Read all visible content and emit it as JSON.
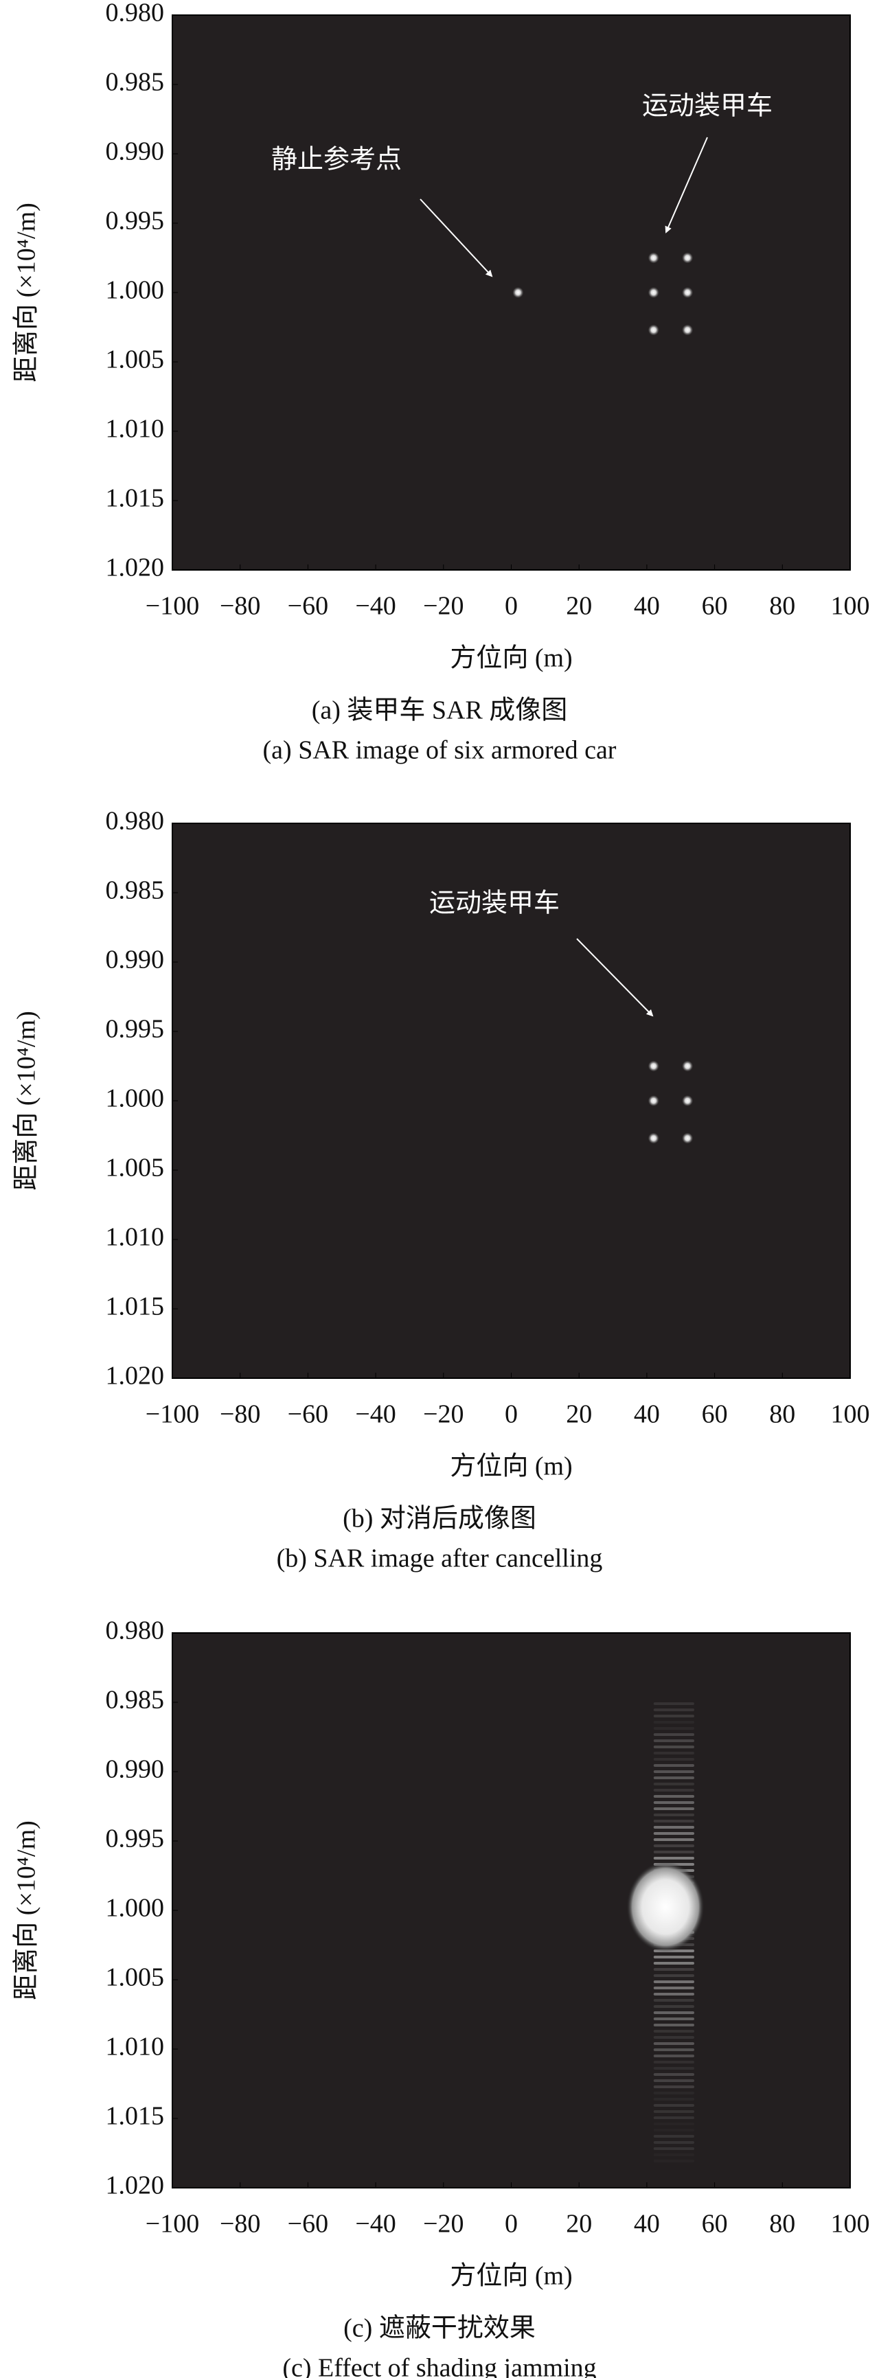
{
  "chart_data": [
    {
      "type": "scatter",
      "x": [
        2,
        42,
        52,
        42,
        52,
        42,
        52
      ],
      "values": [
        1.0,
        0.9975,
        0.9975,
        1.0,
        1.0,
        1.0027,
        1.0027
      ],
      "xlim": [
        -100,
        100
      ],
      "ylim": [
        0.98,
        1.02
      ],
      "xticks": [
        {
          "value": -100,
          "label": "−100"
        },
        {
          "value": -80,
          "label": "−80"
        },
        {
          "value": -60,
          "label": "−60"
        },
        {
          "value": -40,
          "label": "−40"
        },
        {
          "value": -20,
          "label": "−20"
        },
        0,
        20,
        40,
        60,
        80,
        100
      ],
      "yticks": [
        {
          "value": 0.98,
          "label": "0.980"
        },
        {
          "value": 0.985,
          "label": "0.985"
        },
        {
          "value": 0.99,
          "label": "0.990"
        },
        {
          "value": 0.995,
          "label": "0.995"
        },
        {
          "value": 1.0,
          "label": "1.000"
        },
        {
          "value": 1.005,
          "label": "1.005"
        },
        {
          "value": 1.01,
          "label": "1.010"
        },
        {
          "value": 1.015,
          "label": "1.015"
        },
        {
          "value": 1.02,
          "label": "1.020"
        }
      ],
      "xlabel": "方位向 (m)",
      "ylabel": "距离向 (×10⁴/m)",
      "annotations": [
        "静止参考点",
        "运动装甲车"
      ],
      "caption": "(a) 装甲车 SAR 成像图",
      "caption_en": "(a) SAR image of six armored car"
    },
    {
      "type": "scatter",
      "x": [
        42,
        52,
        42,
        52,
        42,
        52
      ],
      "values": [
        0.9975,
        0.9975,
        1.0,
        1.0,
        1.0027,
        1.0027
      ],
      "xlim": [
        -100,
        100
      ],
      "ylim": [
        0.98,
        1.02
      ],
      "xticks": [
        {
          "value": -100,
          "label": "−100"
        },
        {
          "value": -80,
          "label": "−80"
        },
        {
          "value": -60,
          "label": "−60"
        },
        {
          "value": -40,
          "label": "−40"
        },
        {
          "value": -20,
          "label": "−20"
        },
        0,
        20,
        40,
        60,
        80,
        100
      ],
      "yticks": [
        {
          "value": 0.98,
          "label": "0.980"
        },
        {
          "value": 0.985,
          "label": "0.985"
        },
        {
          "value": 0.99,
          "label": "0.990"
        },
        {
          "value": 0.995,
          "label": "0.995"
        },
        {
          "value": 1.0,
          "label": "1.000"
        },
        {
          "value": 1.005,
          "label": "1.005"
        },
        {
          "value": 1.01,
          "label": "1.010"
        },
        {
          "value": 1.015,
          "label": "1.015"
        },
        {
          "value": 1.02,
          "label": "1.020"
        }
      ],
      "xlabel": "方位向 (m)",
      "ylabel": "距离向 (×10⁴/m)",
      "annotations": [
        "运动装甲车"
      ],
      "caption": "(b) 对消后成像图",
      "caption_en": "(b) SAR image after cancelling"
    },
    {
      "type": "jamming",
      "core_x": [
        34,
        57
      ],
      "core_y": [
        0.9965,
        1.003
      ],
      "stripe_x": [
        42,
        54
      ],
      "stripe_y": [
        0.985,
        1.018
      ],
      "xlim": [
        -100,
        100
      ],
      "ylim": [
        0.98,
        1.02
      ],
      "xticks": [
        {
          "value": -100,
          "label": "−100"
        },
        {
          "value": -80,
          "label": "−80"
        },
        {
          "value": -60,
          "label": "−60"
        },
        {
          "value": -40,
          "label": "−40"
        },
        {
          "value": -20,
          "label": "−20"
        },
        0,
        20,
        40,
        60,
        80,
        100
      ],
      "yticks": [
        {
          "value": 0.98,
          "label": "0.980"
        },
        {
          "value": 0.985,
          "label": "0.985"
        },
        {
          "value": 0.99,
          "label": "0.990"
        },
        {
          "value": 0.995,
          "label": "0.995"
        },
        {
          "value": 1.0,
          "label": "1.000"
        },
        {
          "value": 1.005,
          "label": "1.005"
        },
        {
          "value": 1.01,
          "label": "1.010"
        },
        {
          "value": 1.015,
          "label": "1.015"
        },
        {
          "value": 1.02,
          "label": "1.020"
        }
      ],
      "xlabel": "方位向 (m)",
      "ylabel": "距离向 (×10⁴/m)",
      "caption": "(c) 遮蔽干扰效果",
      "caption_en": "(c) Effect of shading jamming"
    }
  ]
}
